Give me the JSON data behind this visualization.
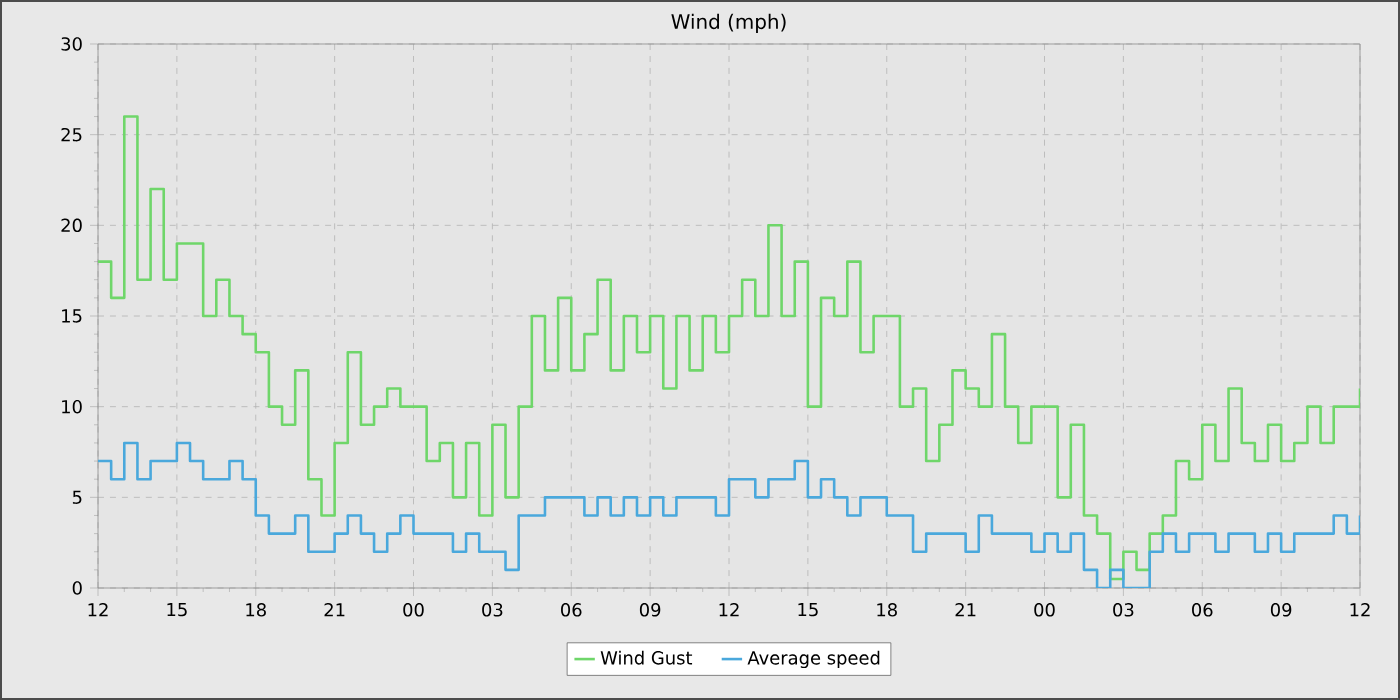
{
  "chart_data": {
    "type": "step",
    "title": "Wind (mph)",
    "x": [
      12,
      12.5,
      13,
      13.5,
      14,
      14.5,
      15,
      15.5,
      16,
      16.5,
      17,
      17.5,
      18,
      18.5,
      19,
      19.5,
      20,
      20.5,
      21,
      21.5,
      22,
      22.5,
      23,
      23.5,
      24,
      24.5,
      25,
      25.5,
      26,
      26.5,
      27,
      27.5,
      28,
      28.5,
      29,
      29.5,
      30,
      30.5,
      31,
      31.5,
      32,
      32.5,
      33,
      33.5,
      34,
      34.5,
      35,
      35.5,
      36,
      36.5,
      37,
      37.5,
      38,
      38.5,
      39,
      39.5,
      40,
      40.5,
      41,
      41.5,
      42,
      42.5,
      43,
      43.5,
      44,
      44.5,
      45,
      45.5,
      46,
      46.5,
      47,
      47.5,
      48,
      48.5,
      49,
      49.5,
      50,
      50.5,
      51,
      51.5,
      52,
      52.5,
      53,
      53.5,
      54,
      54.5,
      55,
      55.5,
      56,
      56.5,
      57,
      57.5,
      58,
      58.5,
      59,
      59.5,
      60
    ],
    "series": [
      {
        "name": "Wind Gust",
        "color": "#6fd66a",
        "values": [
          18,
          16,
          26,
          17,
          22,
          17,
          19,
          19,
          15,
          17,
          15,
          14,
          13,
          10,
          9,
          12,
          6,
          4,
          8,
          13,
          9,
          10,
          11,
          10,
          10,
          7,
          8,
          5,
          8,
          4,
          9,
          5,
          10,
          15,
          12,
          16,
          12,
          14,
          17,
          12,
          15,
          13,
          15,
          11,
          15,
          12,
          15,
          13,
          15,
          17,
          15,
          20,
          15,
          18,
          10,
          16,
          15,
          18,
          13,
          15,
          15,
          10,
          11,
          7,
          9,
          12,
          11,
          10,
          14,
          10,
          8,
          10,
          10,
          5,
          9,
          4,
          3,
          0.5,
          2,
          1,
          3,
          4,
          7,
          6,
          9,
          7,
          11,
          8,
          7,
          9,
          7,
          8,
          10,
          8,
          10,
          10,
          11
        ]
      },
      {
        "name": "Average speed",
        "color": "#4aa8dc",
        "values": [
          7,
          6,
          8,
          6,
          7,
          7,
          8,
          7,
          6,
          6,
          7,
          6,
          4,
          3,
          3,
          4,
          2,
          2,
          3,
          4,
          3,
          2,
          3,
          4,
          3,
          3,
          3,
          2,
          3,
          2,
          2,
          1,
          4,
          4,
          5,
          5,
          5,
          4,
          5,
          4,
          5,
          4,
          5,
          4,
          5,
          5,
          5,
          4,
          6,
          6,
          5,
          6,
          6,
          7,
          5,
          6,
          5,
          4,
          5,
          5,
          4,
          4,
          2,
          3,
          3,
          3,
          2,
          4,
          3,
          3,
          3,
          2,
          3,
          2,
          3,
          1,
          0,
          1,
          0,
          0,
          2,
          3,
          2,
          3,
          3,
          2,
          3,
          3,
          2,
          3,
          2,
          3,
          3,
          3,
          4,
          3,
          4
        ]
      }
    ],
    "xlim": [
      12,
      60
    ],
    "xticks": [
      12,
      15,
      18,
      21,
      {
        "value": 24,
        "label": "00"
      },
      {
        "value": 27,
        "label": "03"
      },
      {
        "value": 30,
        "label": "06"
      },
      {
        "value": 33,
        "label": "09"
      },
      {
        "value": 36,
        "label": "12"
      },
      {
        "value": 39,
        "label": "15"
      },
      {
        "value": 42,
        "label": "18"
      },
      {
        "value": 45,
        "label": "21"
      },
      {
        "value": 48,
        "label": "00"
      },
      {
        "value": 51,
        "label": "03"
      },
      {
        "value": 54,
        "label": "06"
      },
      {
        "value": 57,
        "label": "09"
      },
      {
        "value": 60,
        "label": "12"
      }
    ],
    "ylim": [
      0,
      30
    ],
    "yticks": [
      0,
      5,
      10,
      15,
      20,
      25,
      30
    ],
    "grid": true,
    "legend": "bottom"
  }
}
